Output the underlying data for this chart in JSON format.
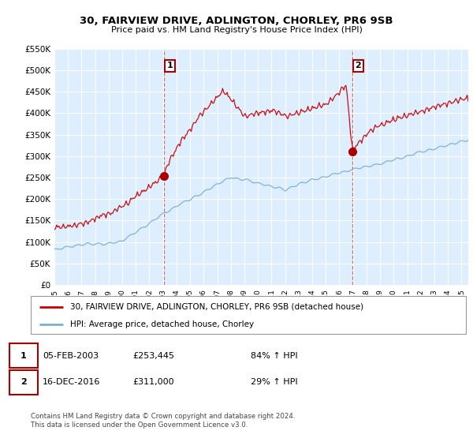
{
  "title": "30, FAIRVIEW DRIVE, ADLINGTON, CHORLEY, PR6 9SB",
  "subtitle": "Price paid vs. HM Land Registry's House Price Index (HPI)",
  "ylabel_ticks": [
    "£0",
    "£50K",
    "£100K",
    "£150K",
    "£200K",
    "£250K",
    "£300K",
    "£350K",
    "£400K",
    "£450K",
    "£500K",
    "£550K"
  ],
  "ylim": [
    0,
    550000
  ],
  "xlim_start": 1995,
  "xlim_end": 2025.5,
  "purchase1_date": "05-FEB-2003",
  "purchase1_x": 2003.09,
  "purchase1_price": 253445,
  "purchase1_label": "84% ↑ HPI",
  "purchase2_date": "16-DEC-2016",
  "purchase2_x": 2016.96,
  "purchase2_price": 311000,
  "purchase2_label": "29% ↑ HPI",
  "line_red_color": "#cc0000",
  "line_blue_color": "#7ab0d4",
  "marker_color_red": "#aa0000",
  "dashed_line_color": "#cc4444",
  "legend_label_red": "30, FAIRVIEW DRIVE, ADLINGTON, CHORLEY, PR6 9SB (detached house)",
  "legend_label_blue": "HPI: Average price, detached house, Chorley",
  "footer1": "Contains HM Land Registry data © Crown copyright and database right 2024.",
  "footer2": "This data is licensed under the Open Government Licence v3.0.",
  "plot_bg_color": "#ddeeff"
}
